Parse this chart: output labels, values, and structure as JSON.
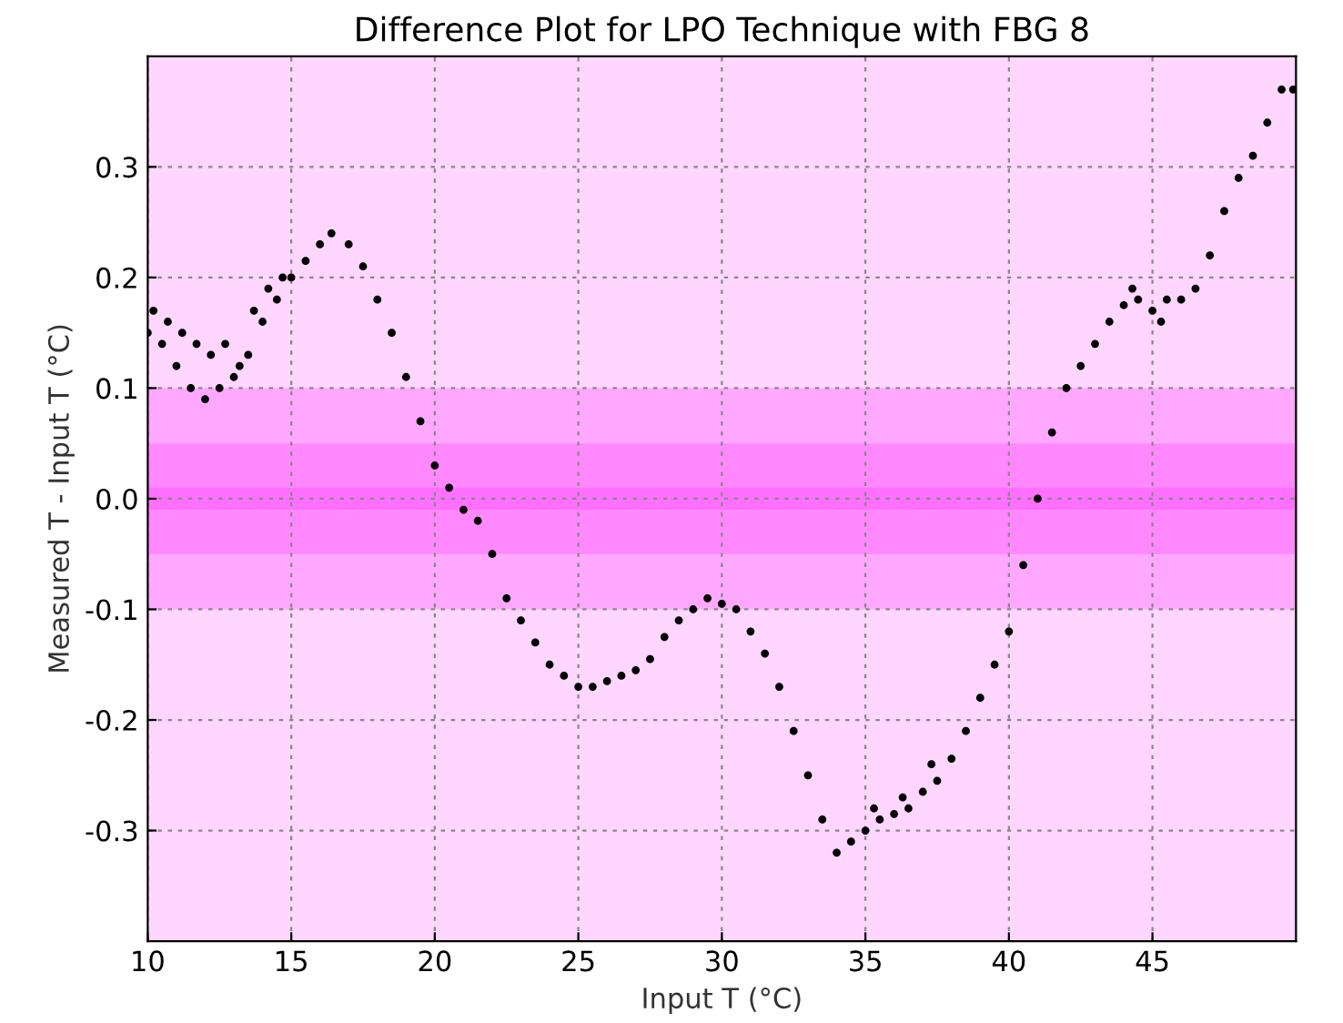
{
  "chart_data": {
    "type": "scatter",
    "title": "Difference Plot for LPO Technique with FBG 8",
    "xlabel": "Input T (°C)",
    "ylabel": "Measured T - Input T (°C)",
    "xlim": [
      10,
      50
    ],
    "xticks": [
      10,
      15,
      20,
      25,
      30,
      35,
      40,
      45
    ],
    "ylim": [
      -0.4,
      0.4
    ],
    "yticks": [
      -0.3,
      -0.2,
      -0.1,
      {
        "value": 0,
        "label": "0.0"
      },
      0.3,
      0.2,
      0.1
    ],
    "grid": true,
    "marker": "circle",
    "legend": false,
    "bands": [
      {
        "axis": "y",
        "from": -0.1,
        "to": 0.1,
        "color": "#ffa8ff"
      },
      {
        "axis": "y",
        "from": -0.05,
        "to": 0.05,
        "color": "#ff88ff"
      },
      {
        "axis": "y",
        "from": -0.01,
        "to": 0.01,
        "color": "#ff70ff"
      }
    ],
    "series": [
      {
        "color": "#000000",
        "x": [
          10,
          10.2,
          10.5,
          10.7,
          11,
          11.2,
          11.5,
          11.7,
          12,
          12.2,
          12.5,
          12.7,
          13,
          13.2,
          13.5,
          13.7,
          14,
          14.2,
          14.5,
          14.7,
          15,
          15.5,
          16,
          16.4,
          17,
          17.5,
          18,
          18.5,
          19,
          19.5,
          20,
          20.5,
          21,
          21.5,
          22,
          22.5,
          23,
          23.5,
          24,
          24.5,
          25,
          25.5,
          26,
          26.5,
          27,
          27.5,
          28,
          28.5,
          29,
          29.5,
          30,
          30.5,
          31,
          31.5,
          32,
          32.5,
          33,
          33.5,
          34,
          34.5,
          35,
          35.3,
          35.5,
          36,
          36.3,
          36.5,
          37,
          37.3,
          37.5,
          38,
          38.5,
          39,
          39.5,
          40,
          40.5,
          41,
          41.5,
          42,
          42.5,
          43,
          43.5,
          44,
          44.3,
          44.5,
          45,
          45.3,
          45.5,
          46,
          46.5,
          47,
          47.5,
          48,
          48.5,
          49,
          49.5,
          49.9
        ],
        "values": [
          0.15,
          0.17,
          0.14,
          0.16,
          0.12,
          0.15,
          0.1,
          0.14,
          0.09,
          0.13,
          0.1,
          0.14,
          0.11,
          0.12,
          0.13,
          0.17,
          0.16,
          0.19,
          0.18,
          0.2,
          0.2,
          0.215,
          0.23,
          0.24,
          0.23,
          0.21,
          0.18,
          0.15,
          0.11,
          0.07,
          0.03,
          0.01,
          -0.01,
          -0.02,
          -0.05,
          -0.09,
          -0.11,
          -0.13,
          -0.15,
          -0.16,
          -0.17,
          -0.17,
          -0.165,
          -0.16,
          -0.155,
          -0.145,
          -0.125,
          -0.11,
          -0.1,
          -0.09,
          -0.095,
          -0.1,
          -0.12,
          -0.14,
          -0.17,
          -0.21,
          -0.25,
          -0.29,
          -0.32,
          -0.31,
          -0.3,
          -0.28,
          -0.29,
          -0.285,
          -0.27,
          -0.28,
          -0.265,
          -0.24,
          -0.255,
          -0.235,
          -0.21,
          -0.18,
          -0.15,
          -0.12,
          -0.06,
          0.0,
          0.06,
          0.1,
          0.12,
          0.14,
          0.16,
          0.175,
          0.19,
          0.18,
          0.17,
          0.16,
          0.18,
          0.18,
          0.19,
          0.22,
          0.26,
          0.29,
          0.31,
          0.34,
          0.37,
          0.37
        ]
      }
    ]
  }
}
